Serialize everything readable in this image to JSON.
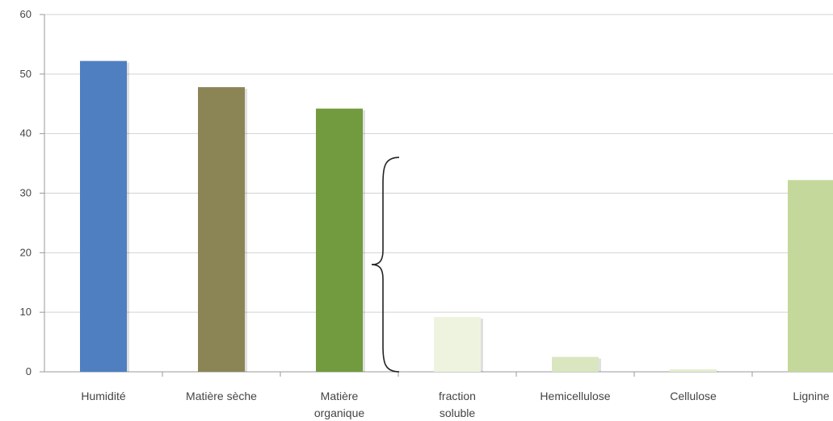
{
  "chart_data": {
    "type": "bar",
    "categories": [
      [
        "Humidité"
      ],
      [
        "Matière sèche"
      ],
      [
        "Matière",
        "organique"
      ],
      [
        "fraction",
        "soluble"
      ],
      [
        "Hemicellulose"
      ],
      [
        "Cellulose"
      ],
      [
        "Lignine"
      ]
    ],
    "values": [
      52.2,
      47.8,
      44.2,
      9.2,
      2.5,
      0.4,
      32.2
    ],
    "colors": [
      "#4f7fc0",
      "#8b8556",
      "#719b3e",
      "#eef3df",
      "#d9e6bf",
      "#e4edcf",
      "#c5d89b"
    ],
    "ylim": [
      0,
      60
    ],
    "yticks": [
      0,
      10,
      20,
      30,
      40,
      50,
      60
    ],
    "grid": true,
    "annotation": "curly brace spanning 0 to 36 beside the fraction soluble bar"
  }
}
